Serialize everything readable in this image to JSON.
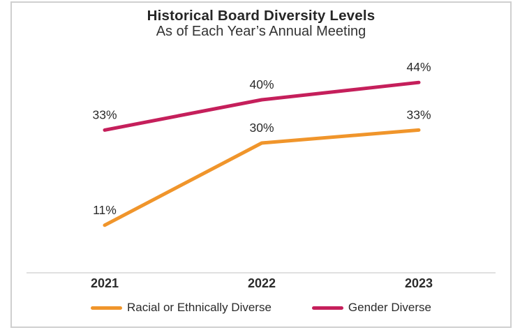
{
  "chart": {
    "title": "Historical Board Diversity Levels",
    "subtitle": "As of Each Year’s Annual Meeting"
  },
  "chart_data": {
    "type": "line",
    "categories": [
      "2021",
      "2022",
      "2023"
    ],
    "series": [
      {
        "name": "Racial or Ethnically Diverse",
        "values": [
          11,
          30,
          33
        ],
        "labels": [
          "11%",
          "30%",
          "33%"
        ],
        "color": "#F0952B"
      },
      {
        "name": "Gender Diverse",
        "values": [
          33,
          40,
          44
        ],
        "labels": [
          "33%",
          "40%",
          "44%"
        ],
        "color": "#C51F5B"
      }
    ],
    "xlabel": "",
    "ylabel": "",
    "ylim": [
      0,
      50
    ],
    "grid": false,
    "data_labels": true,
    "legend_position": "bottom",
    "axis_line_color": "#d5d5d5",
    "text_color": "#2b2b2b"
  }
}
